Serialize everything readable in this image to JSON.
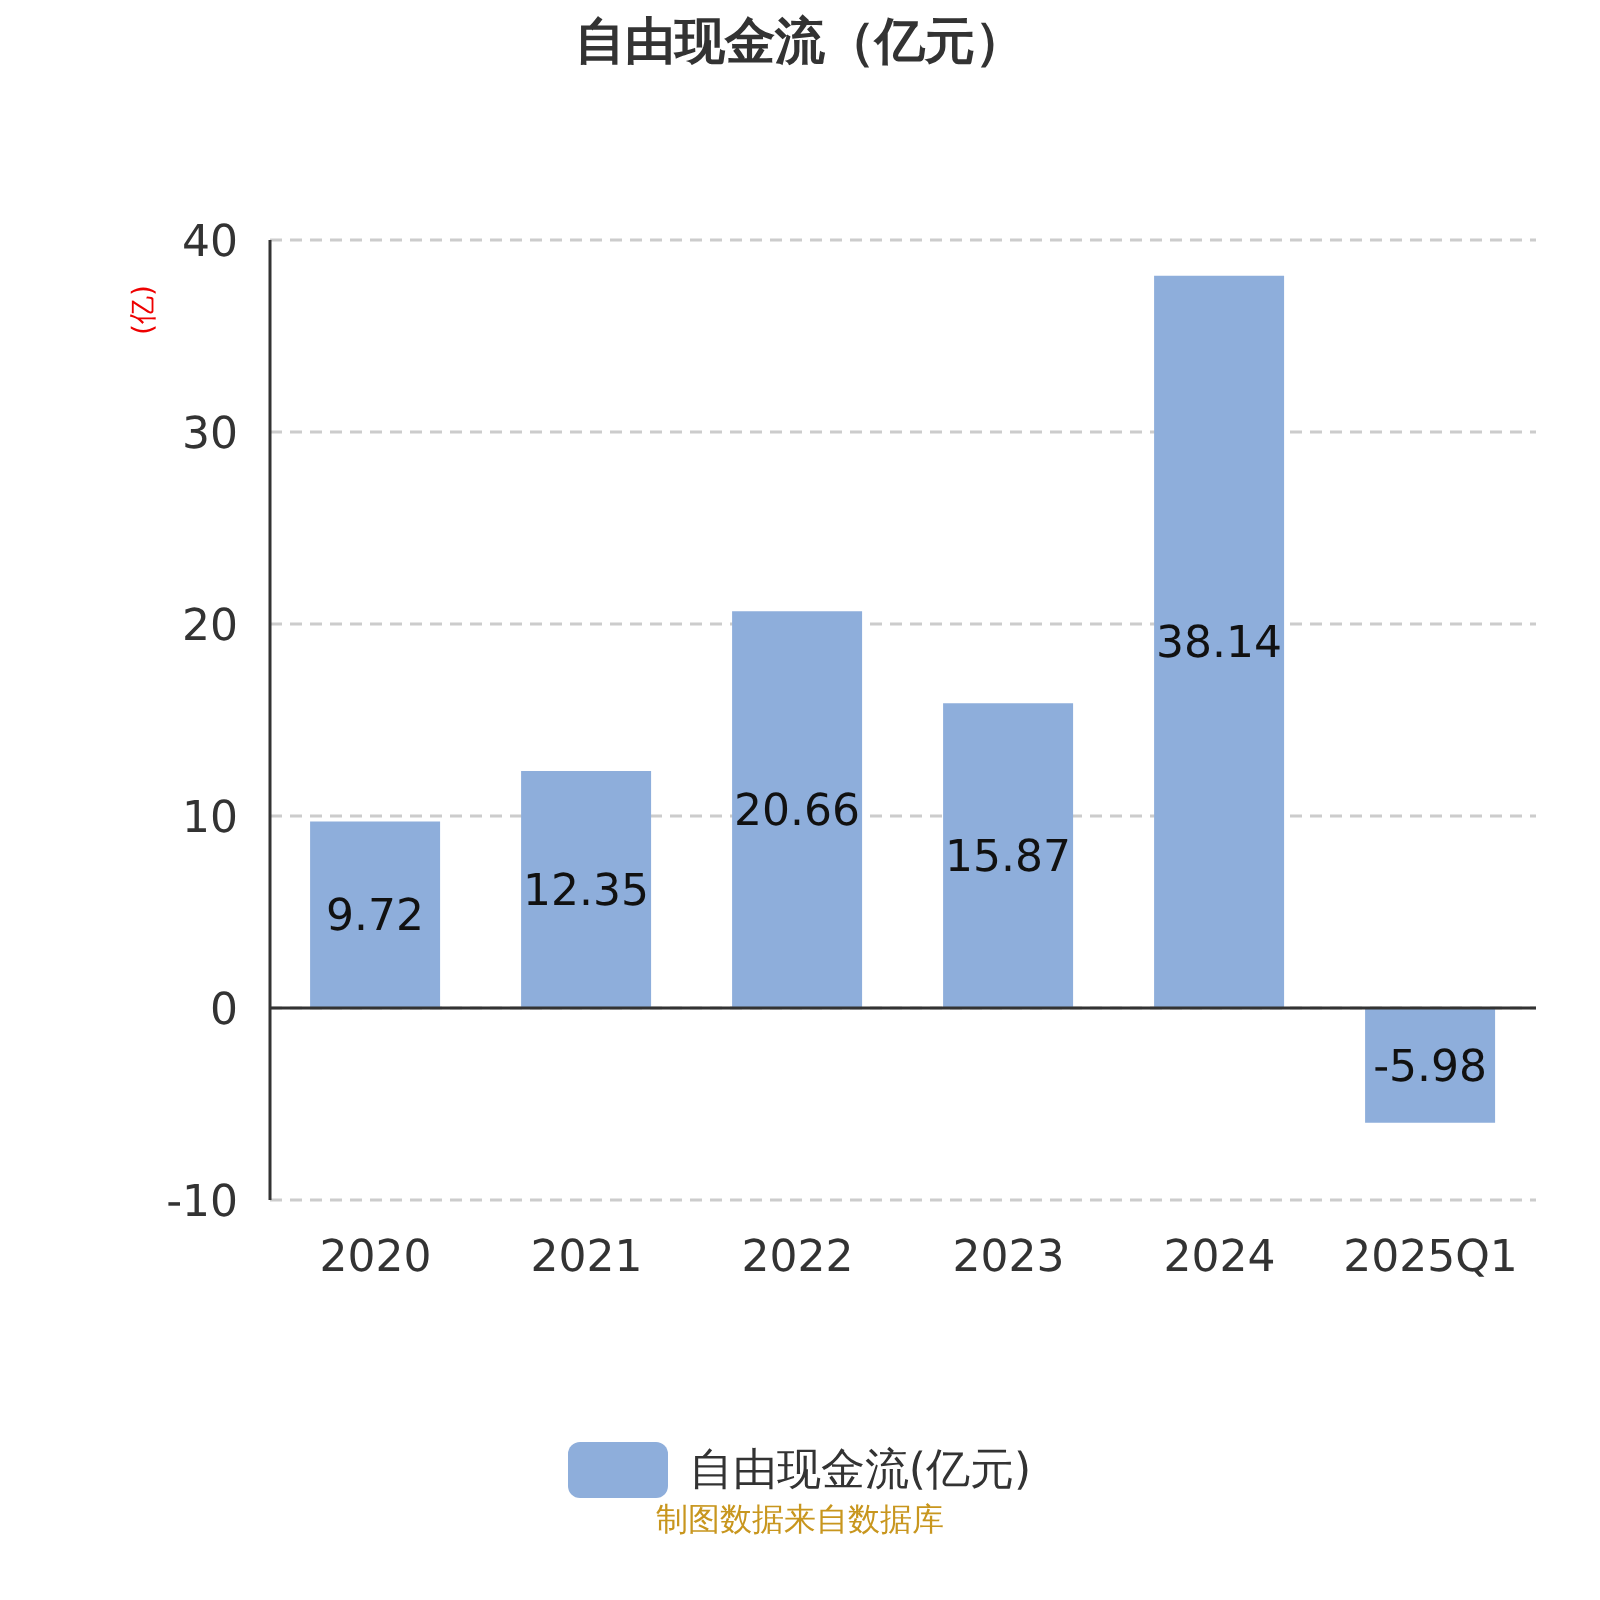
{
  "chart_data": {
    "type": "bar",
    "title": "自由现金流（亿元）",
    "ylabel": "(亿)",
    "categories": [
      "2020",
      "2021",
      "2022",
      "2023",
      "2024",
      "2025Q1"
    ],
    "series": [
      {
        "name": "自由现金流(亿元)",
        "color": "#8eaedb",
        "values": [
          9.72,
          12.35,
          20.66,
          15.87,
          38.14,
          -5.98
        ]
      }
    ],
    "ylim": [
      -10,
      40
    ],
    "yticks": [
      -10,
      0,
      10,
      20,
      30,
      40
    ],
    "grid": "y",
    "legend": "bottom",
    "data_labels": true,
    "annotations": [
      "制图数据来自数据库"
    ]
  }
}
